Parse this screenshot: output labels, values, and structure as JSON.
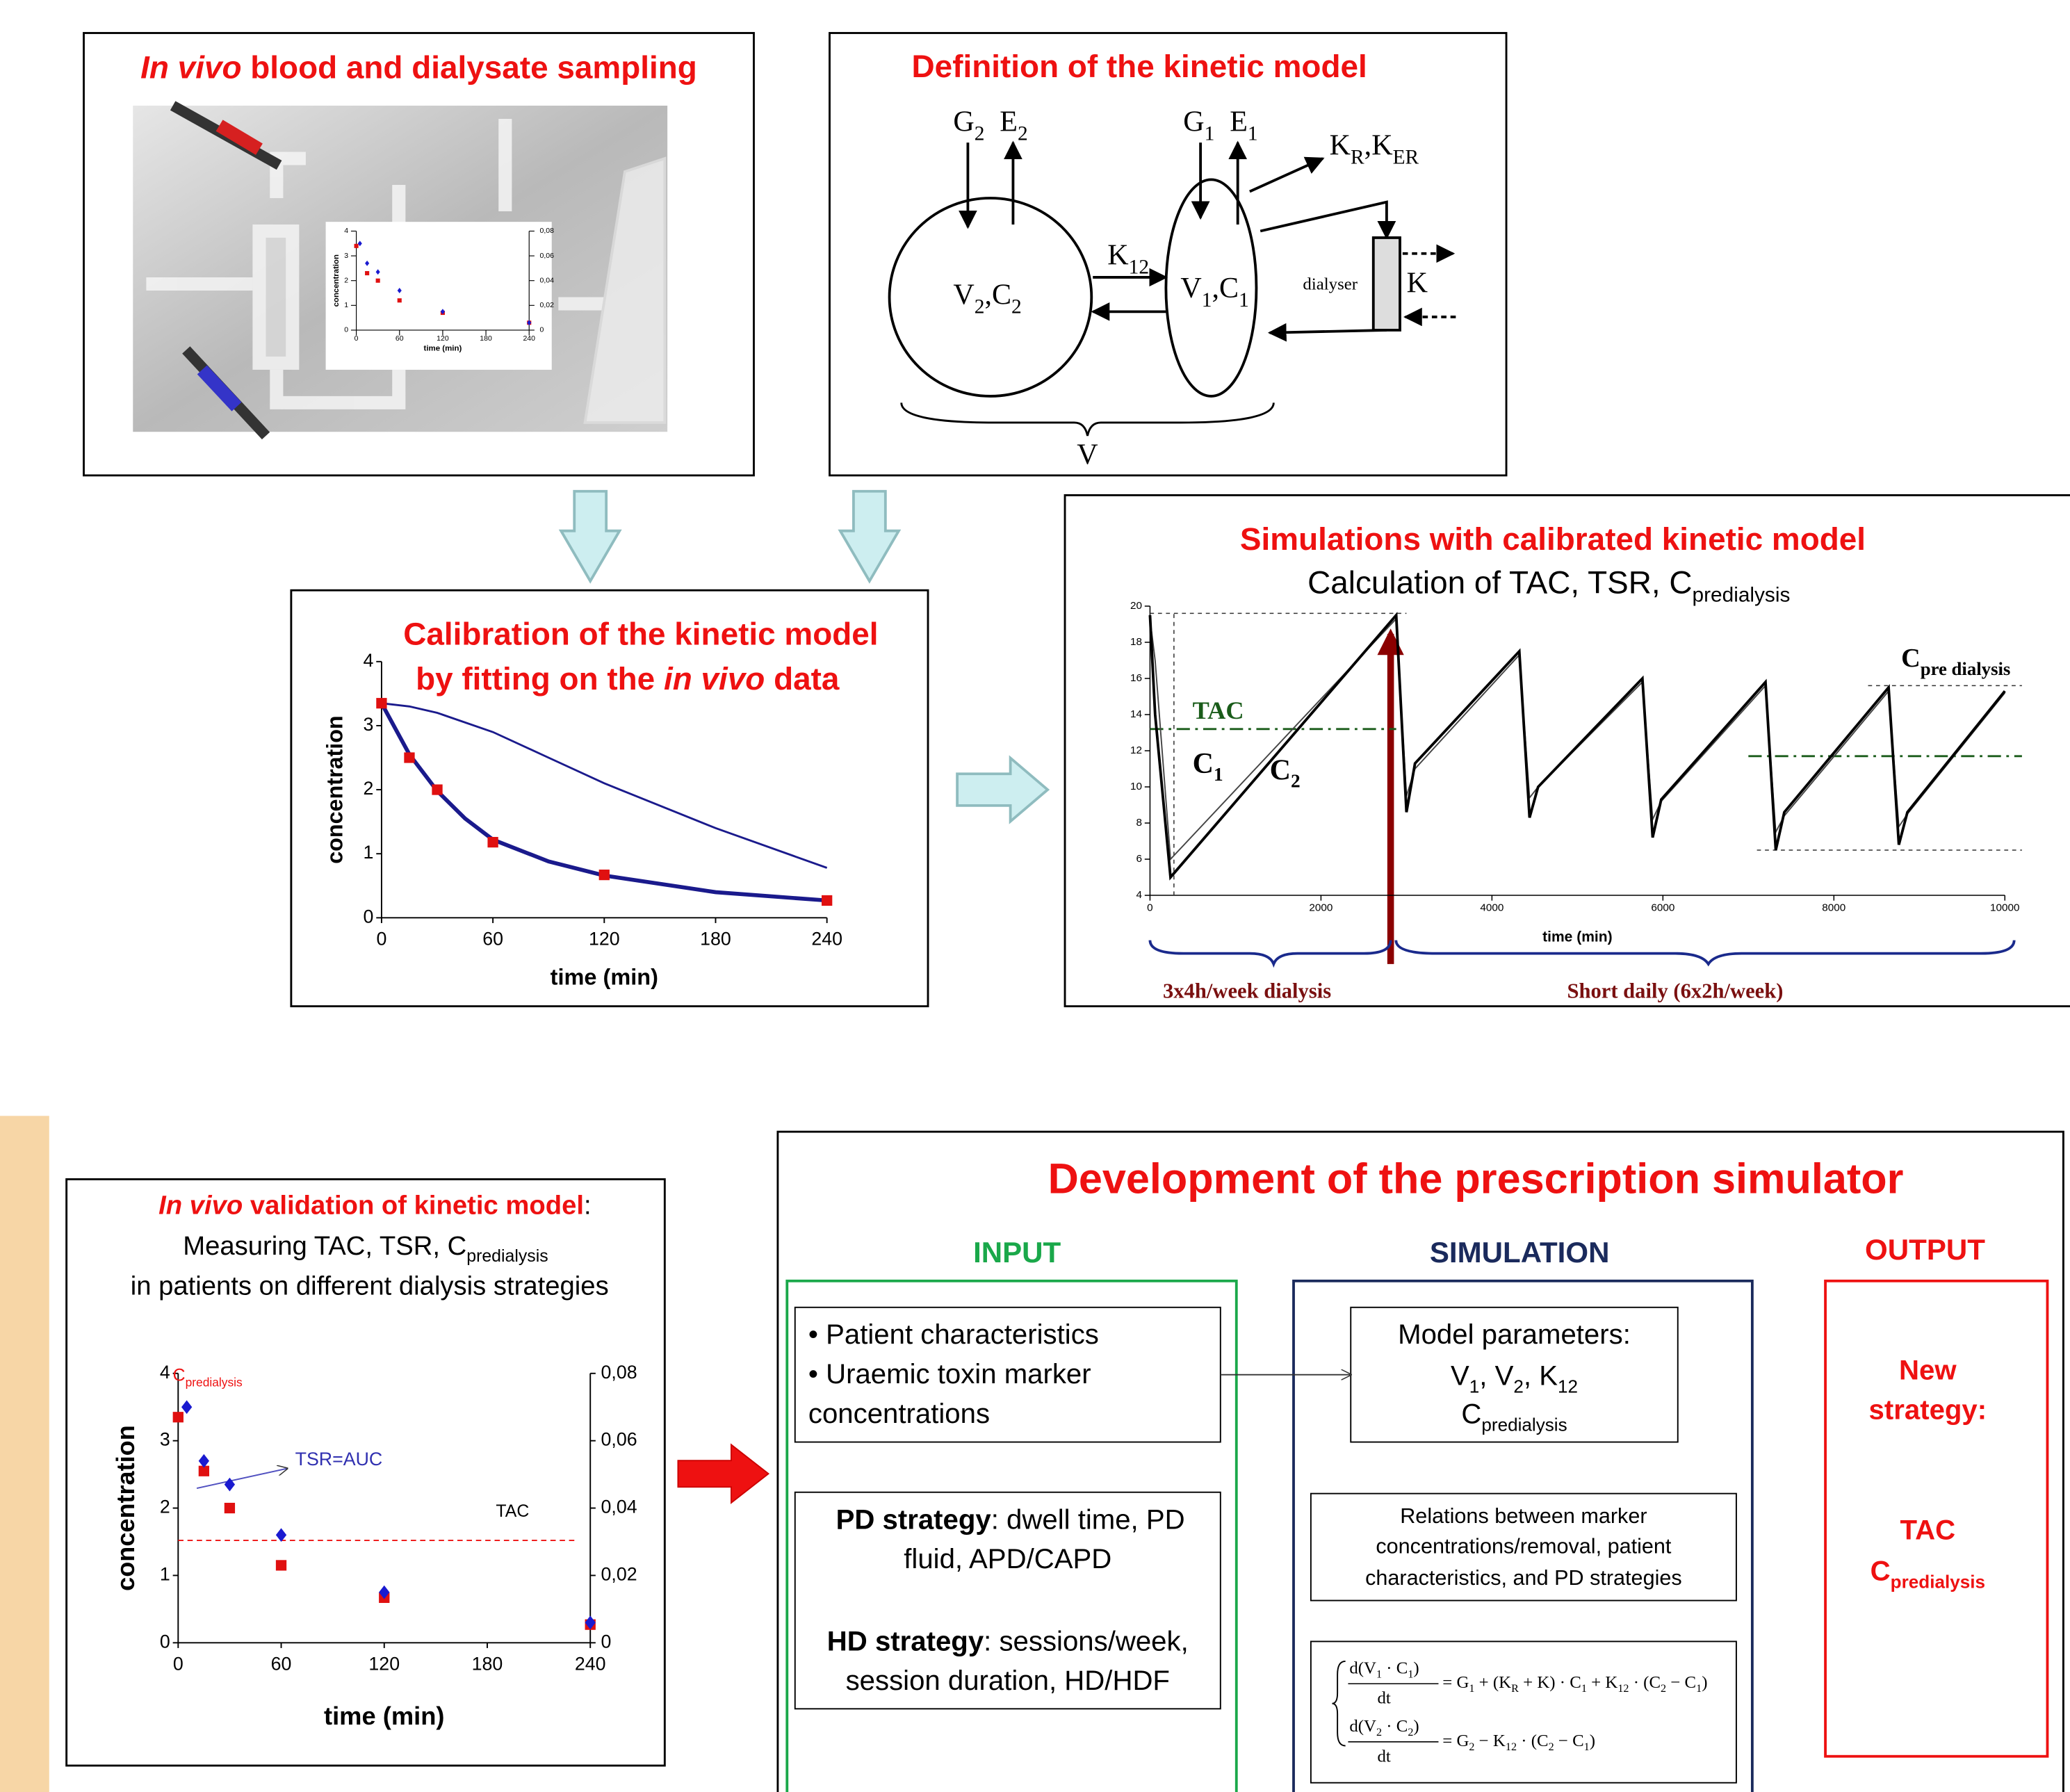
{
  "sampling": {
    "title_italic": "In vivo",
    "title_rest": " blood and dialysate sampling",
    "inset": {
      "ylabel": "concentration",
      "xlabel": "time (min)",
      "xlim": [
        0,
        240
      ],
      "xticks": [
        0,
        60,
        120,
        180,
        240
      ],
      "ylim": [
        0,
        4
      ],
      "yticks": [
        0,
        1,
        2,
        3,
        4
      ],
      "y2lim": [
        0,
        0.08
      ],
      "y2ticks": [
        {
          "value": 0,
          "label": "0"
        },
        {
          "value": 0.02,
          "label": "0,02"
        },
        {
          "value": 0.04,
          "label": "0,04"
        },
        {
          "value": 0.06,
          "label": "0,06"
        },
        {
          "value": 0.08,
          "label": "0,08"
        }
      ],
      "squares": {
        "color": "#e01010",
        "x": [
          0,
          15,
          30,
          60,
          120,
          240
        ],
        "values": [
          3.4,
          2.3,
          2.0,
          1.2,
          0.7,
          0.3
        ]
      },
      "diamonds": {
        "color": "#1a1ad0",
        "axis": "y2",
        "x": [
          5,
          15,
          30,
          60,
          120,
          240
        ],
        "values": [
          0.07,
          0.054,
          0.047,
          0.032,
          0.015,
          0.006
        ]
      }
    }
  },
  "model": {
    "title": "Definition of the kinetic model",
    "labels": [
      [
        "G",
        "2"
      ],
      [
        "E",
        "2"
      ],
      [
        "G",
        "1"
      ],
      [
        "E",
        "1"
      ],
      [
        "K",
        "R",
        ",K",
        "ER"
      ],
      [
        "K",
        "12"
      ],
      [
        "V",
        "2",
        ",C",
        "2"
      ],
      [
        "V",
        "1",
        ",C",
        "1"
      ],
      [
        "dialyser"
      ],
      [
        "K"
      ],
      [
        "V"
      ]
    ]
  },
  "calibration": {
    "title_line1": "Calibration of the kinetic model",
    "title_pre": "by fitting on the ",
    "title_italic": "in vivo",
    "title_post": " data",
    "ylabel": "concentration",
    "xlabel": "time (min)",
    "xlim": [
      0,
      240
    ],
    "xticks": [
      0,
      60,
      120,
      180,
      240
    ],
    "ylim": [
      0,
      4
    ],
    "yticks": [
      0,
      1,
      2,
      3,
      4
    ],
    "points": {
      "color": "#e01010",
      "x": [
        0,
        15,
        30,
        60,
        120,
        240
      ],
      "values": [
        3.35,
        2.5,
        2.0,
        1.18,
        0.67,
        0.27
      ]
    },
    "fit": {
      "color": "#1a1a8c",
      "x": [
        0,
        15,
        30,
        45,
        60,
        90,
        120,
        180,
        240
      ],
      "values": [
        3.35,
        2.55,
        1.98,
        1.55,
        1.22,
        0.88,
        0.66,
        0.4,
        0.27
      ]
    },
    "model_curve": {
      "color": "#1a1a8c",
      "x": [
        0,
        15,
        30,
        60,
        90,
        120,
        180,
        240
      ],
      "values": [
        3.35,
        3.3,
        3.2,
        2.9,
        2.5,
        2.1,
        1.4,
        0.78
      ]
    }
  },
  "simulation": {
    "title": "Simulations with calibrated kinetic model",
    "subtitle": [
      "Calculation of TAC, TSR, C",
      "predialysis"
    ],
    "xlabel": "time (min)",
    "xlim": [
      0,
      10000
    ],
    "xticks": [
      0,
      2000,
      4000,
      6000,
      8000,
      10000
    ],
    "ylim": [
      4,
      20
    ],
    "yticks": [
      4,
      6,
      8,
      10,
      12,
      14,
      16,
      18,
      20
    ],
    "c1": {
      "color": "#000000",
      "x": [
        0,
        60,
        240,
        2880,
        3000,
        3100,
        4320,
        4440,
        4540,
        5760,
        5880,
        5980,
        7200,
        7320,
        7420,
        8640,
        8760,
        8860,
        10000
      ],
      "values": [
        19.5,
        14,
        5,
        19.5,
        8.6,
        11.3,
        17.5,
        8.3,
        10,
        16,
        7.2,
        9.3,
        15.8,
        6.5,
        8.6,
        15.5,
        6.8,
        8.6,
        15.3
      ]
    },
    "c2": {
      "color": "#444444",
      "x": [
        0,
        60,
        240,
        2880,
        3000,
        3100,
        4320,
        4440,
        4540,
        5760,
        5880,
        5980,
        7200,
        7320,
        7420,
        8640,
        8760,
        8860,
        10000
      ],
      "values": [
        19.3,
        17,
        6,
        19.3,
        9.5,
        11,
        17.3,
        9.4,
        10,
        15.8,
        8.2,
        9.2,
        15.6,
        7.5,
        8.4,
        15.3,
        7.8,
        8.5,
        15.2
      ]
    },
    "tac_lines": [
      {
        "x": [
          0,
          2880
        ],
        "y": [
          13.2,
          13.2
        ]
      },
      {
        "x": [
          7000,
          10200
        ],
        "y": [
          11.7,
          11.7
        ]
      }
    ],
    "guides": [
      {
        "x": [
          0,
          3000
        ],
        "y": [
          19.6,
          19.6
        ]
      },
      {
        "x": [
          280,
          280
        ],
        "y": [
          4,
          19.6
        ]
      },
      {
        "x": [
          8400,
          10200
        ],
        "y": [
          15.6,
          15.6
        ]
      },
      {
        "x": [
          7100,
          10200
        ],
        "y": [
          6.5,
          6.5
        ]
      }
    ],
    "tac_label": "TAC",
    "c1_label": [
      "C",
      "1"
    ],
    "c2_label": [
      "C",
      "2"
    ],
    "cpre_label": [
      "C",
      "pre dialysis"
    ],
    "phase1": "3x4h/week dialysis",
    "phase2": "Short daily (6x2h/week)"
  },
  "validation": {
    "title_italic": "In vivo",
    "title_rest": " validation of kinetic model",
    "title_colon": ":",
    "line2": [
      "Measuring TAC, TSR, C",
      "predialysis"
    ],
    "line3": "in patients on different dialysis strategies",
    "ylabel": "concentration",
    "xlabel": "time (min)",
    "xlim": [
      0,
      240
    ],
    "xticks": [
      0,
      60,
      120,
      180,
      240
    ],
    "ylim": [
      0,
      4
    ],
    "yticks": [
      0,
      1,
      2,
      3,
      4
    ],
    "y2lim": [
      0,
      0.08
    ],
    "y2ticks": [
      {
        "value": 0,
        "label": "0"
      },
      {
        "value": 0.02,
        "label": "0,02"
      },
      {
        "value": 0.04,
        "label": "0,04"
      },
      {
        "value": 0.06,
        "label": "0,06"
      },
      {
        "value": 0.08,
        "label": "0,08"
      }
    ],
    "squares": {
      "color": "#e01010",
      "x": [
        0,
        15,
        30,
        60,
        120,
        240
      ],
      "values": [
        3.35,
        2.55,
        2.0,
        1.15,
        0.67,
        0.27
      ]
    },
    "diamonds": {
      "color": "#1a1ad0",
      "axis": "y2",
      "x": [
        5,
        15,
        30,
        60,
        120,
        240
      ],
      "values": [
        0.07,
        0.054,
        0.047,
        0.032,
        0.015,
        0.006
      ]
    },
    "tac": 1.52,
    "cpre_label": [
      "C",
      "predialysis"
    ],
    "tsr_label": "TSR=AUC",
    "tac_label": "TAC"
  },
  "simulator": {
    "title": "Development of the prescription simulator",
    "input": "INPUT",
    "simulation": "SIMULATION",
    "output": "OUTPUT",
    "input_box1": [
      "• Patient characteristics",
      "• Uraemic toxin marker",
      "concentrations"
    ],
    "pd_bold": "PD strategy",
    "pd_rest": ": dwell time, PD",
    "pd_line2": "fluid, APD/CAPD",
    "hd_bold": "HD strategy",
    "hd_rest": ": sessions/week,",
    "hd_line2": "session duration, HD/HDF",
    "params_title": "Model parameters:",
    "params_line2": [
      "V",
      "1",
      ", V",
      "2",
      ", K",
      "12"
    ],
    "params_line3": [
      "C",
      "predialysis"
    ],
    "relations": [
      "Relations between marker",
      "concentrations/removal, patient",
      "characteristics, and PD strategies"
    ],
    "eq1_num": [
      "d(V",
      "1",
      " · C",
      "1",
      ")"
    ],
    "eq1_den": "dt",
    "eq1_rhs": [
      "= G",
      "1",
      " + (K",
      "R",
      " + K) · C",
      "1",
      " + K",
      "12",
      " · (C",
      "2",
      " − C",
      "1",
      ")"
    ],
    "eq2_num": [
      "d(V",
      "2",
      " · C",
      "2",
      ")"
    ],
    "eq2_den": "dt",
    "eq2_rhs": [
      "= G",
      "2",
      " − K",
      "12",
      " · (C",
      "2",
      " − C",
      "1",
      ")"
    ],
    "out1": "New",
    "out2": "strategy:",
    "out3": "TAC",
    "out4": [
      "C",
      "predialysis"
    ]
  }
}
